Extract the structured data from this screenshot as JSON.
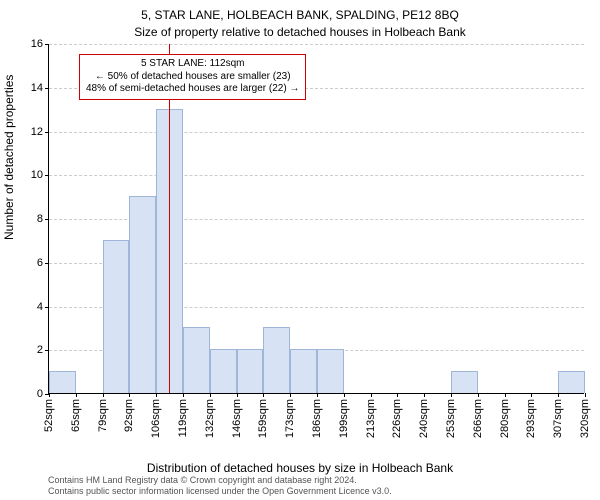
{
  "chart": {
    "type": "histogram",
    "title_main": "5, STAR LANE, HOLBEACH BANK, SPALDING, PE12 8BQ",
    "title_sub": "Size of property relative to detached houses in Holbeach Bank",
    "ylabel": "Number of detached properties",
    "xlabel": "Distribution of detached houses by size in Holbeach Bank",
    "title_fontsize": 12,
    "label_fontsize": 12,
    "tick_fontsize": 11,
    "background_color": "#ffffff",
    "grid_color": "#cccccc",
    "grid_dash": true,
    "bar_fill": "#d7e2f4",
    "bar_border": "#9fb6d9",
    "bar_width_ratio": 1.0,
    "y": {
      "min": 0,
      "max": 16,
      "ticks": [
        0,
        2,
        4,
        6,
        8,
        10,
        12,
        14,
        16
      ]
    },
    "x": {
      "tick_labels": [
        "52sqm",
        "65sqm",
        "79sqm",
        "92sqm",
        "106sqm",
        "119sqm",
        "132sqm",
        "146sqm",
        "159sqm",
        "173sqm",
        "186sqm",
        "199sqm",
        "213sqm",
        "226sqm",
        "240sqm",
        "253sqm",
        "266sqm",
        "280sqm",
        "293sqm",
        "307sqm",
        "320sqm"
      ]
    },
    "values": [
      1,
      0,
      7,
      9,
      13,
      3,
      2,
      2,
      3,
      2,
      2,
      0,
      0,
      0,
      0,
      1,
      0,
      0,
      0,
      1
    ],
    "reference_line": {
      "bin_index": 4,
      "fraction_into_bin": 0.46,
      "color": "#d00000",
      "width": 1
    },
    "annotation": {
      "lines": [
        "5 STAR LANE: 112sqm",
        "← 50% of detached houses are smaller (23)",
        "48% of semi-detached houses are larger (22) →"
      ],
      "border_color": "#d00000",
      "bg_color": "#ffffff",
      "fontsize": 10
    },
    "footer": {
      "line1": "Contains HM Land Registry data © Crown copyright and database right 2024.",
      "line2": "Contains public sector information licensed under the Open Government Licence v3.0.",
      "fontsize": 9,
      "color": "#555555"
    }
  }
}
